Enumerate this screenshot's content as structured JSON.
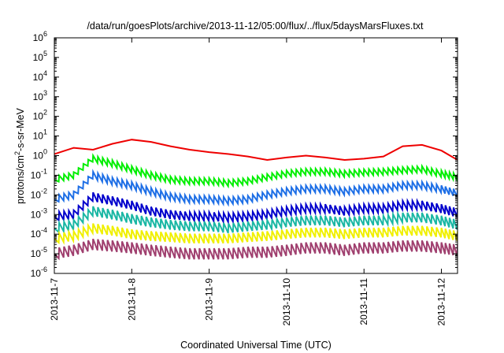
{
  "chart_data": {
    "type": "line",
    "title": "/data/run/goesPlots/archive/2013-11-12/05:00/flux/../flux/5daysMarsFluxes.txt",
    "xlabel": "Coordinated Universal Time (UTC)",
    "ylabel": {
      "base": "protons/cm",
      "sup": "2",
      "rest": "-s-sr-MeV"
    },
    "yscale": "log",
    "ylim_exp": [
      -6,
      6
    ],
    "y_ticks": [
      {
        "base": "10",
        "exp": "-6",
        "value": -6
      },
      {
        "base": "10",
        "exp": "-5",
        "value": -5
      },
      {
        "base": "10",
        "exp": "-4",
        "value": -4
      },
      {
        "base": "10",
        "exp": "-3",
        "value": -3
      },
      {
        "base": "10",
        "exp": "-2",
        "value": -2
      },
      {
        "base": "10",
        "exp": "-1",
        "value": -1
      },
      {
        "base": "10",
        "exp": "0",
        "value": 0
      },
      {
        "base": "10",
        "exp": "1",
        "value": 1
      },
      {
        "base": "10",
        "exp": "2",
        "value": 2
      },
      {
        "base": "10",
        "exp": "3",
        "value": 3
      },
      {
        "base": "10",
        "exp": "4",
        "value": 4
      },
      {
        "base": "10",
        "exp": "5",
        "value": 5
      },
      {
        "base": "10",
        "exp": "6",
        "value": 6
      }
    ],
    "xlim": [
      "2013-11-07T00:00",
      "2013-11-12T05:00"
    ],
    "x_ticks": [
      "2013-11-7",
      "2013-11-8",
      "2013-11-9",
      "2013-11-10",
      "2013-11-11",
      "2013-11-12"
    ],
    "grid": false,
    "legend": "none",
    "series": [
      {
        "color": "#ee0000",
        "points": [
          [
            "2013-11-07T00:00",
            1.2
          ],
          [
            "2013-11-07T06:00",
            2.5
          ],
          [
            "2013-11-07T12:00",
            2.0
          ],
          [
            "2013-11-07T18:00",
            4.0
          ],
          [
            "2013-11-08T00:00",
            6.5
          ],
          [
            "2013-11-08T06:00",
            5.0
          ],
          [
            "2013-11-08T12:00",
            3.0
          ],
          [
            "2013-11-08T18:00",
            2.0
          ],
          [
            "2013-11-09T00:00",
            1.5
          ],
          [
            "2013-11-09T06:00",
            1.2
          ],
          [
            "2013-11-09T12:00",
            0.9
          ],
          [
            "2013-11-09T18:00",
            0.6
          ],
          [
            "2013-11-10T00:00",
            0.8
          ],
          [
            "2013-11-10T06:00",
            1.0
          ],
          [
            "2013-11-10T12:00",
            0.8
          ],
          [
            "2013-11-10T18:00",
            0.6
          ],
          [
            "2013-11-11T00:00",
            0.7
          ],
          [
            "2013-11-11T06:00",
            0.9
          ],
          [
            "2013-11-11T12:00",
            3.0
          ],
          [
            "2013-11-11T18:00",
            3.5
          ],
          [
            "2013-11-12T00:00",
            1.8
          ],
          [
            "2013-11-12T05:00",
            0.6
          ]
        ]
      },
      {
        "color": "#00ee00",
        "points": [
          [
            "2013-11-07T00:00",
            0.06
          ],
          [
            "2013-11-07T06:00",
            0.1
          ],
          [
            "2013-11-07T12:00",
            0.7
          ],
          [
            "2013-11-07T18:00",
            0.4
          ],
          [
            "2013-11-08T00:00",
            0.2
          ],
          [
            "2013-11-08T06:00",
            0.1
          ],
          [
            "2013-11-08T12:00",
            0.06
          ],
          [
            "2013-11-08T18:00",
            0.05
          ],
          [
            "2013-11-09T00:00",
            0.05
          ],
          [
            "2013-11-09T06:00",
            0.04
          ],
          [
            "2013-11-09T12:00",
            0.05
          ],
          [
            "2013-11-09T18:00",
            0.08
          ],
          [
            "2013-11-10T00:00",
            0.12
          ],
          [
            "2013-11-10T06:00",
            0.15
          ],
          [
            "2013-11-10T12:00",
            0.15
          ],
          [
            "2013-11-10T18:00",
            0.12
          ],
          [
            "2013-11-11T00:00",
            0.14
          ],
          [
            "2013-11-11T06:00",
            0.15
          ],
          [
            "2013-11-11T12:00",
            0.18
          ],
          [
            "2013-11-11T18:00",
            0.2
          ],
          [
            "2013-11-12T00:00",
            0.12
          ],
          [
            "2013-11-12T05:00",
            0.08
          ]
        ]
      },
      {
        "color": "#1e6fe6",
        "points": [
          [
            "2013-11-07T00:00",
            0.006
          ],
          [
            "2013-11-07T06:00",
            0.01
          ],
          [
            "2013-11-07T12:00",
            0.1
          ],
          [
            "2013-11-07T18:00",
            0.05
          ],
          [
            "2013-11-08T00:00",
            0.03
          ],
          [
            "2013-11-08T06:00",
            0.015
          ],
          [
            "2013-11-08T12:00",
            0.008
          ],
          [
            "2013-11-08T18:00",
            0.006
          ],
          [
            "2013-11-09T00:00",
            0.006
          ],
          [
            "2013-11-09T06:00",
            0.005
          ],
          [
            "2013-11-09T12:00",
            0.006
          ],
          [
            "2013-11-09T18:00",
            0.01
          ],
          [
            "2013-11-10T00:00",
            0.015
          ],
          [
            "2013-11-10T06:00",
            0.02
          ],
          [
            "2013-11-10T12:00",
            0.02
          ],
          [
            "2013-11-10T18:00",
            0.015
          ],
          [
            "2013-11-11T00:00",
            0.02
          ],
          [
            "2013-11-11T06:00",
            0.02
          ],
          [
            "2013-11-11T12:00",
            0.03
          ],
          [
            "2013-11-11T18:00",
            0.03
          ],
          [
            "2013-11-12T00:00",
            0.02
          ],
          [
            "2013-11-12T05:00",
            0.012
          ]
        ]
      },
      {
        "color": "#0000cc",
        "points": [
          [
            "2013-11-07T00:00",
            0.0008
          ],
          [
            "2013-11-07T06:00",
            0.001
          ],
          [
            "2013-11-07T12:00",
            0.008
          ],
          [
            "2013-11-07T18:00",
            0.005
          ],
          [
            "2013-11-08T00:00",
            0.003
          ],
          [
            "2013-11-08T06:00",
            0.0015
          ],
          [
            "2013-11-08T12:00",
            0.001
          ],
          [
            "2013-11-08T18:00",
            0.0008
          ],
          [
            "2013-11-09T00:00",
            0.0008
          ],
          [
            "2013-11-09T06:00",
            0.0007
          ],
          [
            "2013-11-09T12:00",
            0.0008
          ],
          [
            "2013-11-09T18:00",
            0.001
          ],
          [
            "2013-11-10T00:00",
            0.0015
          ],
          [
            "2013-11-10T06:00",
            0.002
          ],
          [
            "2013-11-10T12:00",
            0.002
          ],
          [
            "2013-11-10T18:00",
            0.0015
          ],
          [
            "2013-11-11T00:00",
            0.002
          ],
          [
            "2013-11-11T06:00",
            0.002
          ],
          [
            "2013-11-11T12:00",
            0.003
          ],
          [
            "2013-11-11T18:00",
            0.003
          ],
          [
            "2013-11-12T00:00",
            0.002
          ],
          [
            "2013-11-12T05:00",
            0.0012
          ]
        ]
      },
      {
        "color": "#1ab7a4",
        "points": [
          [
            "2013-11-07T00:00",
            0.0002
          ],
          [
            "2013-11-07T06:00",
            0.0003
          ],
          [
            "2013-11-07T12:00",
            0.0015
          ],
          [
            "2013-11-07T18:00",
            0.001
          ],
          [
            "2013-11-08T00:00",
            0.0006
          ],
          [
            "2013-11-08T06:00",
            0.0004
          ],
          [
            "2013-11-08T12:00",
            0.0003
          ],
          [
            "2013-11-08T18:00",
            0.00025
          ],
          [
            "2013-11-09T00:00",
            0.00025
          ],
          [
            "2013-11-09T06:00",
            0.0002
          ],
          [
            "2013-11-09T12:00",
            0.00025
          ],
          [
            "2013-11-09T18:00",
            0.0003
          ],
          [
            "2013-11-10T00:00",
            0.0004
          ],
          [
            "2013-11-10T06:00",
            0.0005
          ],
          [
            "2013-11-10T12:00",
            0.0005
          ],
          [
            "2013-11-10T18:00",
            0.0004
          ],
          [
            "2013-11-11T00:00",
            0.0005
          ],
          [
            "2013-11-11T06:00",
            0.0005
          ],
          [
            "2013-11-11T12:00",
            0.0007
          ],
          [
            "2013-11-11T18:00",
            0.0007
          ],
          [
            "2013-11-12T00:00",
            0.0005
          ],
          [
            "2013-11-12T05:00",
            0.0003
          ]
        ]
      },
      {
        "color": "#f0f000",
        "points": [
          [
            "2013-11-07T00:00",
            6e-05
          ],
          [
            "2013-11-07T06:00",
            8e-05
          ],
          [
            "2013-11-07T12:00",
            0.0002
          ],
          [
            "2013-11-07T18:00",
            0.00015
          ],
          [
            "2013-11-08T00:00",
            0.0001
          ],
          [
            "2013-11-08T06:00",
            8e-05
          ],
          [
            "2013-11-08T12:00",
            7e-05
          ],
          [
            "2013-11-08T18:00",
            6e-05
          ],
          [
            "2013-11-09T00:00",
            6e-05
          ],
          [
            "2013-11-09T06:00",
            6e-05
          ],
          [
            "2013-11-09T12:00",
            7e-05
          ],
          [
            "2013-11-09T18:00",
            8e-05
          ],
          [
            "2013-11-10T00:00",
            0.0001
          ],
          [
            "2013-11-10T06:00",
            0.00012
          ],
          [
            "2013-11-10T12:00",
            0.00012
          ],
          [
            "2013-11-10T18:00",
            0.0001
          ],
          [
            "2013-11-11T00:00",
            0.00012
          ],
          [
            "2013-11-11T06:00",
            0.00012
          ],
          [
            "2013-11-11T12:00",
            0.00015
          ],
          [
            "2013-11-11T18:00",
            0.00015
          ],
          [
            "2013-11-12T00:00",
            0.00012
          ],
          [
            "2013-11-12T05:00",
            8e-05
          ]
        ]
      },
      {
        "color": "#a0406f",
        "points": [
          [
            "2013-11-07T00:00",
            1e-05
          ],
          [
            "2013-11-07T06:00",
            1.5e-05
          ],
          [
            "2013-11-07T12:00",
            3e-05
          ],
          [
            "2013-11-07T18:00",
            2.5e-05
          ],
          [
            "2013-11-08T00:00",
            2e-05
          ],
          [
            "2013-11-08T06:00",
            1.5e-05
          ],
          [
            "2013-11-08T12:00",
            1.2e-05
          ],
          [
            "2013-11-08T18:00",
            1e-05
          ],
          [
            "2013-11-09T00:00",
            1e-05
          ],
          [
            "2013-11-09T06:00",
            1e-05
          ],
          [
            "2013-11-09T12:00",
            1.2e-05
          ],
          [
            "2013-11-09T18:00",
            1.2e-05
          ],
          [
            "2013-11-10T00:00",
            1.5e-05
          ],
          [
            "2013-11-10T06:00",
            2e-05
          ],
          [
            "2013-11-10T12:00",
            2e-05
          ],
          [
            "2013-11-10T18:00",
            1.5e-05
          ],
          [
            "2013-11-11T00:00",
            2e-05
          ],
          [
            "2013-11-11T06:00",
            2e-05
          ],
          [
            "2013-11-11T12:00",
            2.5e-05
          ],
          [
            "2013-11-11T18:00",
            2.5e-05
          ],
          [
            "2013-11-12T00:00",
            2e-05
          ],
          [
            "2013-11-12T05:00",
            1.5e-05
          ]
        ]
      }
    ]
  }
}
